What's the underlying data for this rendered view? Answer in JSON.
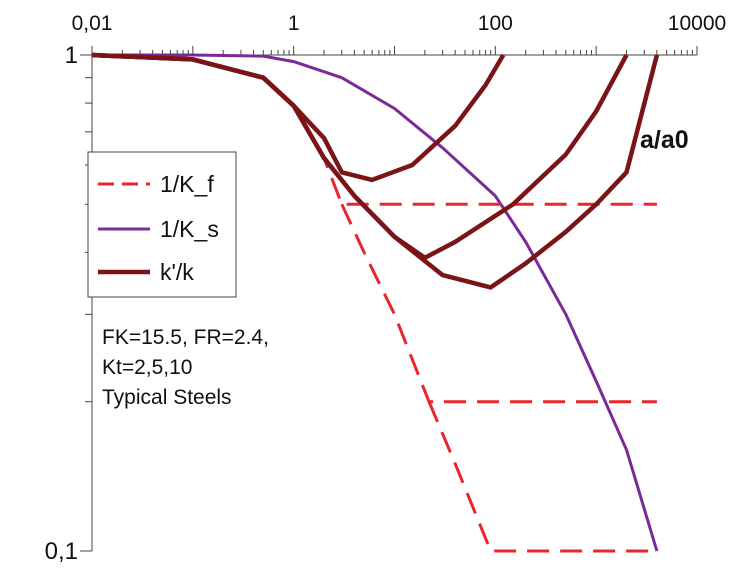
{
  "chart_data": {
    "type": "line",
    "x_scale": "log",
    "y_scale": "log",
    "xlim": [
      0.01,
      10000
    ],
    "ylim": [
      0.1,
      1
    ],
    "x_ticks": [
      "0,01",
      "1",
      "100",
      "10000"
    ],
    "y_ticks": [
      "1",
      "0,1"
    ],
    "x_tick_values": [
      0.01,
      1,
      100,
      10000
    ],
    "y_tick_values": [
      1,
      0.1
    ],
    "xlabel": "a/a0",
    "ylabel": "",
    "grid": false,
    "legend_position": "left",
    "legend": [
      {
        "name": "1/K_f",
        "color": "#e8262c",
        "style": "dashed"
      },
      {
        "name": "1/K_s",
        "color": "#7a2a96",
        "style": "solid"
      },
      {
        "name": "k'/k",
        "color": "#7b1416",
        "style": "solid-thick"
      }
    ],
    "annotation_lines": [
      "FK=15.5, FR=2.4,",
      "Kt=2,5,10",
      "Typical Steels"
    ],
    "series": [
      {
        "name": "1/K_f",
        "kt": 2,
        "points": [
          [
            0.01,
            1
          ],
          [
            0.1,
            0.98
          ],
          [
            0.5,
            0.9
          ],
          [
            1,
            0.79
          ],
          [
            2,
            0.62
          ],
          [
            3,
            0.5
          ],
          [
            3.3,
            0.5
          ],
          [
            10,
            0.5
          ],
          [
            100,
            0.5
          ],
          [
            1000,
            0.5
          ],
          [
            4000,
            0.5
          ]
        ]
      },
      {
        "name": "1/K_f",
        "kt": 5,
        "points": [
          [
            3,
            0.5
          ],
          [
            5,
            0.4
          ],
          [
            10,
            0.3
          ],
          [
            22,
            0.2
          ],
          [
            30,
            0.2
          ],
          [
            100,
            0.2
          ],
          [
            1000,
            0.2
          ],
          [
            4000,
            0.2
          ]
        ]
      },
      {
        "name": "1/K_f",
        "kt": 10,
        "points": [
          [
            22,
            0.2
          ],
          [
            40,
            0.15
          ],
          [
            90,
            0.1
          ],
          [
            100,
            0.1
          ],
          [
            1000,
            0.1
          ],
          [
            4000,
            0.1
          ]
        ]
      },
      {
        "name": "1/K_s",
        "points": [
          [
            0.01,
            1
          ],
          [
            0.1,
            1
          ],
          [
            0.5,
            0.995
          ],
          [
            1,
            0.97
          ],
          [
            3,
            0.9
          ],
          [
            10,
            0.78
          ],
          [
            30,
            0.65
          ],
          [
            100,
            0.52
          ],
          [
            200,
            0.42
          ],
          [
            500,
            0.3
          ],
          [
            1000,
            0.22
          ],
          [
            2000,
            0.16
          ],
          [
            4000,
            0.1
          ]
        ]
      },
      {
        "name": "k'/k",
        "kt": 2,
        "points": [
          [
            0.01,
            1
          ],
          [
            0.1,
            0.98
          ],
          [
            0.5,
            0.9
          ],
          [
            1,
            0.79
          ],
          [
            2,
            0.68
          ],
          [
            3,
            0.58
          ],
          [
            6,
            0.56
          ],
          [
            15,
            0.6
          ],
          [
            40,
            0.72
          ],
          [
            80,
            0.87
          ],
          [
            120,
            1
          ]
        ]
      },
      {
        "name": "k'/k",
        "kt": 5,
        "points": [
          [
            0.01,
            1
          ],
          [
            0.1,
            0.98
          ],
          [
            0.5,
            0.9
          ],
          [
            1,
            0.79
          ],
          [
            2,
            0.62
          ],
          [
            4,
            0.52
          ],
          [
            10,
            0.43
          ],
          [
            20,
            0.39
          ],
          [
            40,
            0.42
          ],
          [
            150,
            0.5
          ],
          [
            500,
            0.63
          ],
          [
            1000,
            0.77
          ],
          [
            2000,
            1
          ]
        ]
      },
      {
        "name": "k'/k",
        "kt": 10,
        "points": [
          [
            0.01,
            1
          ],
          [
            0.1,
            0.98
          ],
          [
            0.5,
            0.9
          ],
          [
            1,
            0.79
          ],
          [
            2,
            0.62
          ],
          [
            4,
            0.52
          ],
          [
            10,
            0.43
          ],
          [
            30,
            0.36
          ],
          [
            90,
            0.34
          ],
          [
            200,
            0.38
          ],
          [
            500,
            0.44
          ],
          [
            1000,
            0.5
          ],
          [
            2000,
            0.58
          ],
          [
            4000,
            1
          ]
        ]
      }
    ]
  }
}
